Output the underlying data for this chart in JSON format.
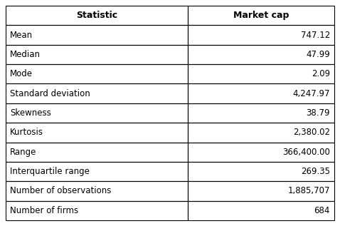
{
  "rows": [
    [
      "Mean",
      "747.12"
    ],
    [
      "Median",
      "47.99"
    ],
    [
      "Mode",
      "2.09"
    ],
    [
      "Standard deviation",
      "4,247.97"
    ],
    [
      "Skewness",
      "38.79"
    ],
    [
      "Kurtosis",
      "2,380.02"
    ],
    [
      "Range",
      "366,400.00"
    ],
    [
      "Interquartile range",
      "269.35"
    ],
    [
      "Number of observations",
      "1,885,707"
    ],
    [
      "Number of firms",
      "684"
    ]
  ],
  "col_headers": [
    "Statistic",
    "Market cap"
  ],
  "bg_color": "#ffffff",
  "line_color": "#000000",
  "text_color": "#000000",
  "font_size": 8.5,
  "header_font_size": 9.0,
  "col_split": 0.555
}
